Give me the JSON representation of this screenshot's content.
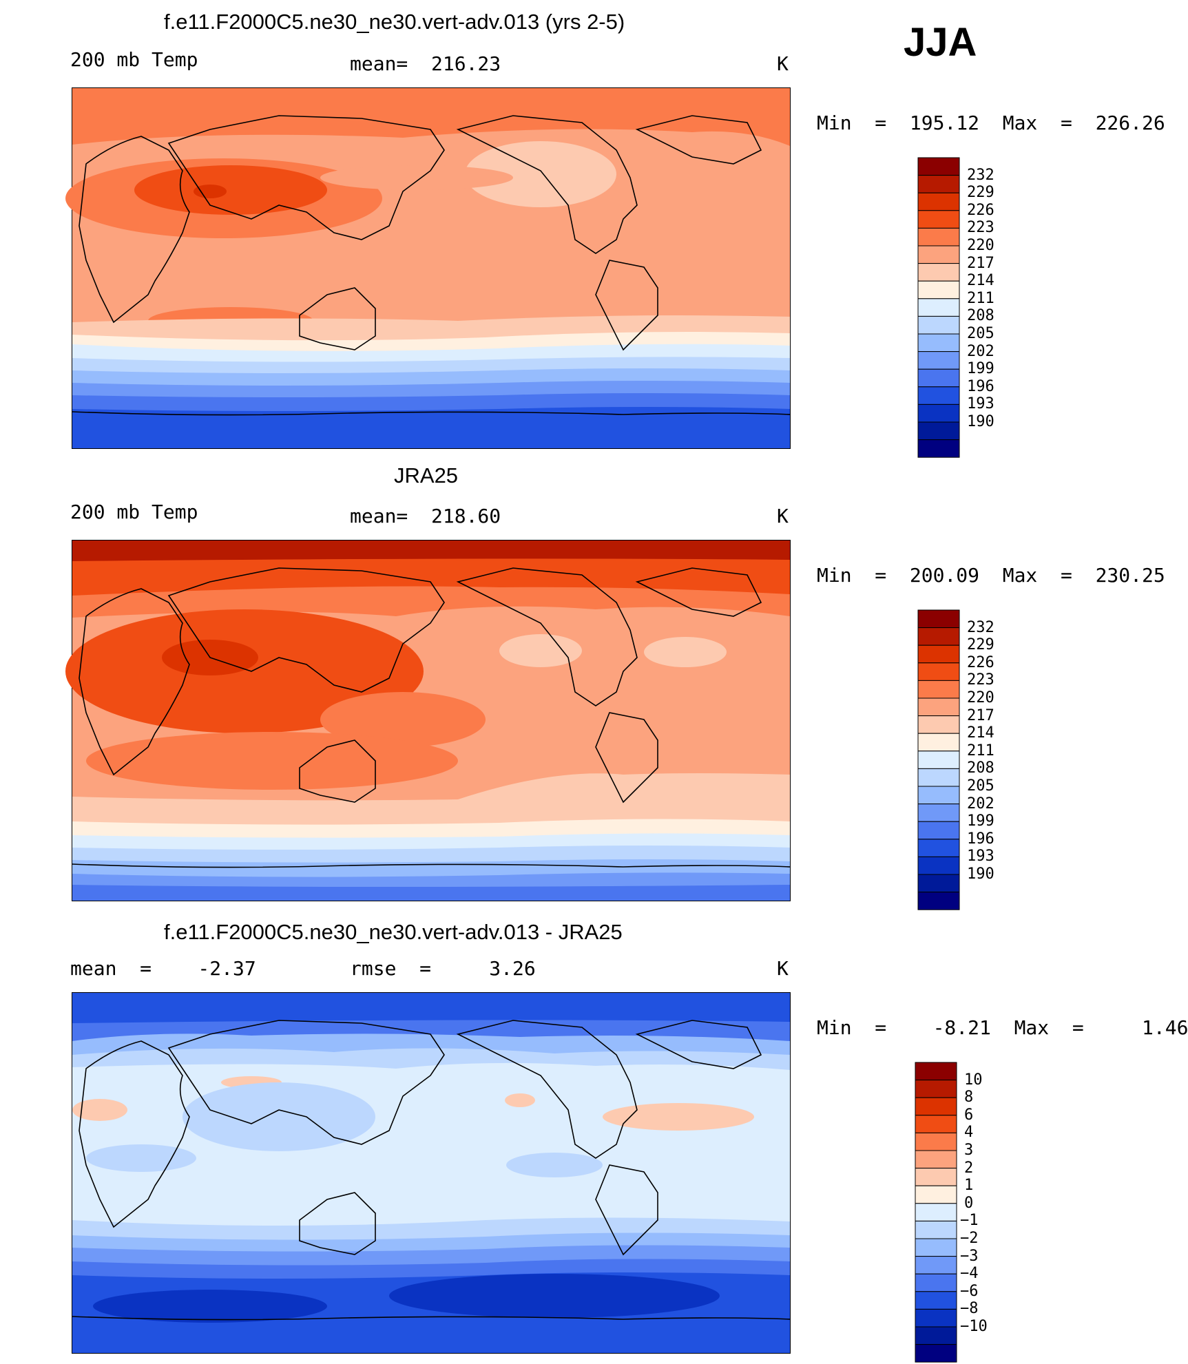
{
  "season": "JJA",
  "panels": [
    {
      "title": "f.e11.F2000C5.ne30_ne30.vert-adv.013 (yrs 2-5)",
      "left_label": "200 mb Temp",
      "center_label": "mean=  216.23",
      "units": "K",
      "minmax": "Min  =  195.12  Max  =  226.26",
      "colorbar": {
        "labels": [
          "232",
          "229",
          "226",
          "223",
          "220",
          "217",
          "214",
          "211",
          "208",
          "205",
          "202",
          "199",
          "196",
          "193",
          "190"
        ],
        "colors": [
          "#8b0000",
          "#b61a00",
          "#dc3300",
          "#f04d14",
          "#fb7b4a",
          "#fca37e",
          "#fdcab0",
          "#fff0e0",
          "#ddeefe",
          "#bcd7fe",
          "#96bcfd",
          "#7099f8",
          "#4a75ef",
          "#2152e0",
          "#0a33c2",
          "#001a99",
          "#000080"
        ]
      },
      "style": "model"
    },
    {
      "title": "JRA25",
      "left_label": "200 mb Temp",
      "center_label": "mean=  218.60",
      "units": "K",
      "minmax": "Min  =  200.09  Max  =  230.25",
      "colorbar": {
        "labels": [
          "232",
          "229",
          "226",
          "223",
          "220",
          "217",
          "214",
          "211",
          "208",
          "205",
          "202",
          "199",
          "196",
          "193",
          "190"
        ],
        "colors": [
          "#8b0000",
          "#b61a00",
          "#dc3300",
          "#f04d14",
          "#fb7b4a",
          "#fca37e",
          "#fdcab0",
          "#fff0e0",
          "#ddeefe",
          "#bcd7fe",
          "#96bcfd",
          "#7099f8",
          "#4a75ef",
          "#2152e0",
          "#0a33c2",
          "#001a99",
          "#000080"
        ]
      },
      "style": "obs"
    },
    {
      "title": "f.e11.F2000C5.ne30_ne30.vert-adv.013 - JRA25",
      "left_label": "mean  =    -2.37",
      "center_label": "rmse  =     3.26",
      "units": "K",
      "minmax": "Min  =    -8.21  Max  =     1.46",
      "colorbar": {
        "labels": [
          "10",
          "8",
          "6",
          "4",
          "3",
          "2",
          "1",
          "0",
          "-1",
          "-2",
          "-3",
          "-4",
          "-6",
          "-8",
          "-10"
        ],
        "colors": [
          "#8b0000",
          "#b61a00",
          "#dc3300",
          "#f04d14",
          "#fb7b4a",
          "#fca37e",
          "#fdcab0",
          "#fff0e0",
          "#ddeefe",
          "#bcd7fe",
          "#96bcfd",
          "#7099f8",
          "#4a75ef",
          "#2152e0",
          "#0a33c2",
          "#001a99",
          "#000080"
        ]
      },
      "style": "diff"
    }
  ]
}
